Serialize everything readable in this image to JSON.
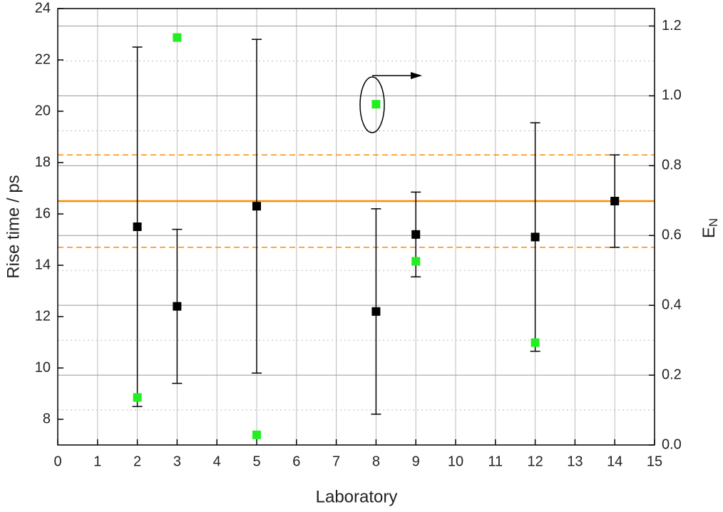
{
  "chart_data": {
    "type": "scatter",
    "xlabel": "Laboratory",
    "ylabel": "Rise time / ps",
    "y2label": {
      "main": "E",
      "sub": "N"
    },
    "xlim": [
      0,
      15
    ],
    "xticks": [
      0,
      1,
      2,
      3,
      4,
      5,
      6,
      7,
      8,
      9,
      10,
      11,
      12,
      13,
      14,
      15
    ],
    "ylim": [
      7,
      24
    ],
    "yticks": [
      8,
      10,
      12,
      14,
      16,
      18,
      20,
      22,
      24
    ],
    "y2lim": [
      0,
      1.25
    ],
    "y2ticks": [
      {
        "value": 0,
        "label": "0.0"
      },
      {
        "value": 0.2,
        "label": "0.2"
      },
      {
        "value": 0.4,
        "label": "0.4"
      },
      {
        "value": 0.6,
        "label": "0.6"
      },
      {
        "value": 0.8,
        "label": "0.8"
      },
      {
        "value": 1.0,
        "label": "1.0"
      },
      {
        "value": 1.2,
        "label": "1.2"
      }
    ],
    "grid": true,
    "reference_lines": [
      {
        "value": 16.5,
        "style": "solid",
        "color": "#ff8c00"
      },
      {
        "value": 18.3,
        "style": "dashed",
        "color": "#ff8c00"
      },
      {
        "value": 14.7,
        "style": "dashed",
        "color": "#ff8c00"
      }
    ],
    "series": [
      {
        "color": "#000000",
        "axis": "y",
        "x": [
          2,
          3,
          5,
          8,
          9,
          12,
          14
        ],
        "values": [
          15.5,
          12.4,
          16.3,
          12.2,
          15.2,
          15.1,
          16.5
        ],
        "errors": [
          7,
          3,
          6.5,
          4,
          1.65,
          4.45,
          1.8
        ]
      },
      {
        "color": "#22ee22",
        "axis": "y2",
        "x": [
          2,
          3,
          5,
          8,
          9,
          12
        ],
        "values": [
          0.136,
          1.167,
          0.029,
          0.976,
          0.526,
          0.293
        ]
      }
    ]
  }
}
